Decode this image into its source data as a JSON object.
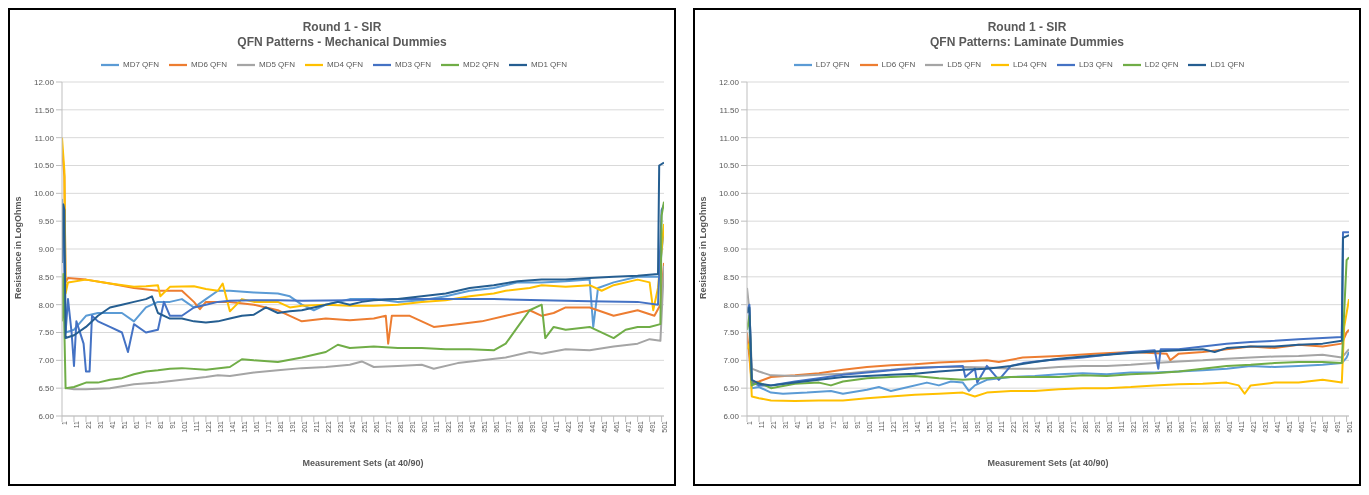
{
  "chart_data": [
    {
      "type": "line",
      "title": "Round 1 - SIR",
      "subtitle": "QFN Patterns - Mechanical Dummies",
      "xlabel": "Measurement Sets (at 40/90)",
      "ylabel": "Resistance in LogOhms",
      "xlim": [
        1,
        503
      ],
      "xticks": [
        1,
        11,
        21,
        31,
        41,
        51,
        61,
        71,
        81,
        91,
        101,
        111,
        121,
        131,
        141,
        151,
        161,
        171,
        181,
        191,
        201,
        211,
        221,
        231,
        241,
        251,
        261,
        271,
        281,
        291,
        301,
        311,
        321,
        331,
        341,
        351,
        361,
        371,
        381,
        391,
        401,
        411,
        421,
        431,
        441,
        451,
        461,
        471,
        481,
        491,
        501
      ],
      "ylim": [
        6,
        12
      ],
      "yticks": [
        {
          "value": 6,
          "label": "6.00"
        },
        {
          "value": 6.5,
          "label": "6.50"
        },
        {
          "value": 7,
          "label": "7.00"
        },
        {
          "value": 7.5,
          "label": "7.50"
        },
        {
          "value": 8,
          "label": "8.00"
        },
        {
          "value": 8.5,
          "label": "8.50"
        },
        {
          "value": 9,
          "label": "9.00"
        },
        {
          "value": 9.5,
          "label": "9.50"
        },
        {
          "value": 10,
          "label": "10.00"
        },
        {
          "value": 10.5,
          "label": "10.50"
        },
        {
          "value": 11,
          "label": "11.00"
        },
        {
          "value": 11.5,
          "label": "11.50"
        },
        {
          "value": 12,
          "label": "12.00"
        }
      ],
      "grid": "y",
      "legend": "top",
      "marker": "none",
      "line_style": "solid",
      "series": [
        {
          "name": "MD7 QFN",
          "color": "#5b9bd5",
          "x": [
            1,
            3,
            4,
            11,
            21,
            31,
            41,
            51,
            61,
            71,
            81,
            91,
            101,
            111,
            121,
            131,
            141,
            161,
            181,
            191,
            201,
            211,
            221,
            241,
            261,
            281,
            301,
            321,
            341,
            361,
            381,
            401,
            421,
            441,
            444,
            448,
            461,
            481,
            491,
            499,
            503
          ],
          "values": [
            9.9,
            9.0,
            7.5,
            7.55,
            7.8,
            7.85,
            7.85,
            7.85,
            7.7,
            7.95,
            8.05,
            8.05,
            8.1,
            7.95,
            8.1,
            8.25,
            8.25,
            8.22,
            8.2,
            8.15,
            8.0,
            7.9,
            8.0,
            8.1,
            8.1,
            8.05,
            8.08,
            8.15,
            8.25,
            8.3,
            8.4,
            8.4,
            8.42,
            8.45,
            7.6,
            8.3,
            8.4,
            8.5,
            8.5,
            8.5,
            9.4
          ]
        },
        {
          "name": "MD6 QFN",
          "color": "#ed7d31",
          "x": [
            1,
            3,
            4,
            6,
            21,
            41,
            61,
            81,
            101,
            111,
            116,
            121,
            141,
            161,
            181,
            191,
            201,
            221,
            241,
            261,
            271,
            273,
            276,
            291,
            301,
            311,
            331,
            351,
            371,
            391,
            401,
            411,
            421,
            441,
            461,
            481,
            495,
            500,
            503
          ],
          "values": [
            10.8,
            10.3,
            8.4,
            8.48,
            8.45,
            8.38,
            8.3,
            8.25,
            8.25,
            8.05,
            7.92,
            8.05,
            8.05,
            8.0,
            7.9,
            7.8,
            7.7,
            7.75,
            7.72,
            7.75,
            7.8,
            7.3,
            7.8,
            7.8,
            7.7,
            7.6,
            7.65,
            7.7,
            7.8,
            7.9,
            7.8,
            7.85,
            7.95,
            7.95,
            7.8,
            7.9,
            7.8,
            8.0,
            8.75
          ]
        },
        {
          "name": "MD5 QFN",
          "color": "#a5a5a5",
          "x": [
            5,
            11,
            21,
            41,
            61,
            81,
            101,
            121,
            131,
            141,
            161,
            181,
            201,
            221,
            241,
            251,
            261,
            281,
            301,
            311,
            331,
            351,
            371,
            391,
            401,
            421,
            441,
            461,
            481,
            491,
            500,
            503
          ],
          "values": [
            6.5,
            6.48,
            6.48,
            6.5,
            6.57,
            6.6,
            6.65,
            6.7,
            6.73,
            6.72,
            6.78,
            6.82,
            6.86,
            6.88,
            6.92,
            6.98,
            6.88,
            6.9,
            6.92,
            6.85,
            6.95,
            7.0,
            7.05,
            7.15,
            7.12,
            7.2,
            7.18,
            7.25,
            7.3,
            7.38,
            7.35,
            8.7
          ]
        },
        {
          "name": "MD4 QFN",
          "color": "#ffc000",
          "x": [
            1,
            3,
            4,
            6,
            21,
            41,
            61,
            71,
            81,
            83,
            91,
            111,
            121,
            131,
            135,
            141,
            151,
            161,
            171,
            181,
            191,
            201,
            221,
            241,
            261,
            281,
            301,
            321,
            341,
            361,
            371,
            391,
            401,
            421,
            441,
            451,
            461,
            481,
            491,
            494,
            498,
            503
          ],
          "values": [
            11.0,
            10.4,
            8.2,
            8.4,
            8.45,
            8.38,
            8.32,
            8.33,
            8.35,
            8.15,
            8.32,
            8.33,
            8.28,
            8.25,
            8.38,
            7.88,
            8.1,
            8.05,
            8.05,
            8.05,
            7.95,
            7.98,
            8.0,
            7.98,
            7.98,
            8.0,
            8.05,
            8.08,
            8.15,
            8.2,
            8.25,
            8.3,
            8.35,
            8.32,
            8.35,
            8.25,
            8.35,
            8.45,
            8.4,
            7.9,
            8.3,
            9.45
          ]
        },
        {
          "name": "MD3 QFN",
          "color": "#4472c4",
          "x": [
            1,
            2,
            4,
            6,
            9,
            11,
            13,
            19,
            21,
            24,
            26,
            31,
            41,
            51,
            56,
            61,
            71,
            81,
            86,
            91,
            101,
            111,
            121,
            131,
            141,
            161,
            181,
            201,
            241,
            281,
            321,
            361,
            401,
            441,
            481,
            498,
            501,
            503
          ],
          "values": [
            9.0,
            9.8,
            7.5,
            8.1,
            7.5,
            6.9,
            7.7,
            7.3,
            6.8,
            6.8,
            7.8,
            7.7,
            7.6,
            7.5,
            7.15,
            7.65,
            7.5,
            7.55,
            8.05,
            7.8,
            7.8,
            7.95,
            8.0,
            8.05,
            8.07,
            8.08,
            8.08,
            8.07,
            8.08,
            8.1,
            8.1,
            8.1,
            8.08,
            8.06,
            8.05,
            8.0,
            9.7,
            9.8
          ]
        },
        {
          "name": "MD2 QFN",
          "color": "#70ad47",
          "x": [
            1,
            2,
            4,
            11,
            21,
            31,
            41,
            51,
            61,
            71,
            81,
            91,
            101,
            121,
            141,
            151,
            161,
            181,
            201,
            221,
            231,
            241,
            261,
            281,
            301,
            321,
            341,
            361,
            371,
            381,
            391,
            401,
            404,
            411,
            421,
            441,
            461,
            471,
            481,
            491,
            500,
            501,
            503
          ],
          "values": [
            7.7,
            8.55,
            6.5,
            6.52,
            6.6,
            6.6,
            6.65,
            6.68,
            6.75,
            6.8,
            6.82,
            6.85,
            6.86,
            6.83,
            6.88,
            7.02,
            7.0,
            6.97,
            7.05,
            7.15,
            7.28,
            7.22,
            7.25,
            7.22,
            7.22,
            7.2,
            7.2,
            7.18,
            7.3,
            7.6,
            7.9,
            8.0,
            7.4,
            7.6,
            7.55,
            7.6,
            7.4,
            7.55,
            7.6,
            7.6,
            7.65,
            9.6,
            9.85
          ]
        },
        {
          "name": "MD1 QFN",
          "color": "#255e91",
          "x": [
            1,
            2,
            3,
            4,
            11,
            21,
            31,
            41,
            51,
            61,
            71,
            76,
            81,
            91,
            101,
            111,
            121,
            131,
            141,
            151,
            161,
            171,
            181,
            191,
            201,
            211,
            221,
            231,
            241,
            251,
            261,
            281,
            301,
            321,
            341,
            361,
            381,
            401,
            421,
            441,
            461,
            481,
            498,
            499,
            503
          ],
          "values": [
            8.75,
            9.8,
            9.7,
            7.4,
            7.45,
            7.6,
            7.8,
            7.95,
            8.0,
            8.05,
            8.1,
            8.15,
            7.85,
            7.75,
            7.75,
            7.7,
            7.68,
            7.7,
            7.75,
            7.8,
            7.82,
            7.95,
            7.85,
            7.88,
            7.9,
            7.95,
            8.0,
            8.05,
            8.0,
            8.05,
            8.08,
            8.1,
            8.15,
            8.2,
            8.3,
            8.35,
            8.42,
            8.45,
            8.45,
            8.48,
            8.5,
            8.52,
            8.55,
            10.5,
            10.55
          ]
        }
      ]
    },
    {
      "type": "line",
      "title": "Round 1 - SIR",
      "subtitle": "QFN Patterns: Laminate Dummies",
      "xlabel": "Measurement Sets (at 40/90)",
      "ylabel": "Resistance in LogOhms",
      "xlim": [
        1,
        503
      ],
      "xticks": [
        1,
        11,
        21,
        31,
        41,
        51,
        61,
        71,
        81,
        91,
        101,
        111,
        121,
        131,
        141,
        151,
        161,
        171,
        181,
        191,
        201,
        211,
        221,
        231,
        241,
        251,
        261,
        271,
        281,
        291,
        301,
        311,
        321,
        331,
        341,
        351,
        361,
        371,
        381,
        391,
        401,
        411,
        421,
        431,
        441,
        451,
        461,
        471,
        481,
        491,
        501
      ],
      "ylim": [
        6,
        12
      ],
      "yticks": [
        {
          "value": 6,
          "label": "6.00"
        },
        {
          "value": 6.5,
          "label": "6.50"
        },
        {
          "value": 7,
          "label": "7.00"
        },
        {
          "value": 7.5,
          "label": "7.50"
        },
        {
          "value": 8,
          "label": "8.00"
        },
        {
          "value": 8.5,
          "label": "8.50"
        },
        {
          "value": 9,
          "label": "9.00"
        },
        {
          "value": 9.5,
          "label": "9.50"
        },
        {
          "value": 10,
          "label": "10.00"
        },
        {
          "value": 10.5,
          "label": "10.50"
        },
        {
          "value": 11,
          "label": "11.00"
        },
        {
          "value": 11.5,
          "label": "11.50"
        },
        {
          "value": 12,
          "label": "12.00"
        }
      ],
      "grid": "y",
      "legend": "top",
      "marker": "none",
      "line_style": "solid",
      "series": [
        {
          "name": "LD7 QFN",
          "color": "#5b9bd5",
          "x": [
            1,
            3,
            5,
            11,
            21,
            31,
            51,
            71,
            81,
            101,
            111,
            121,
            131,
            151,
            161,
            171,
            181,
            186,
            191,
            201,
            221,
            241,
            261,
            281,
            301,
            321,
            341,
            361,
            381,
            401,
            421,
            441,
            461,
            481,
            497,
            501,
            503
          ],
          "values": [
            7.6,
            7.7,
            6.5,
            6.52,
            6.42,
            6.4,
            6.42,
            6.45,
            6.4,
            6.47,
            6.52,
            6.45,
            6.5,
            6.6,
            6.55,
            6.62,
            6.6,
            6.45,
            6.55,
            6.65,
            6.7,
            6.72,
            6.75,
            6.77,
            6.75,
            6.78,
            6.78,
            6.8,
            6.82,
            6.85,
            6.9,
            6.88,
            6.9,
            6.92,
            6.95,
            7.05,
            7.15
          ]
        },
        {
          "name": "LD6 QFN",
          "color": "#ed7d31",
          "x": [
            1,
            5,
            11,
            21,
            41,
            61,
            81,
            101,
            121,
            141,
            161,
            181,
            201,
            211,
            231,
            261,
            291,
            321,
            351,
            354,
            361,
            381,
            401,
            421,
            441,
            461,
            481,
            497,
            501,
            503
          ],
          "values": [
            7.5,
            6.6,
            6.62,
            6.7,
            6.73,
            6.77,
            6.83,
            6.88,
            6.91,
            6.93,
            6.96,
            6.98,
            7.0,
            6.97,
            7.05,
            7.08,
            7.12,
            7.15,
            7.12,
            7.0,
            7.12,
            7.15,
            7.2,
            7.25,
            7.22,
            7.28,
            7.25,
            7.3,
            7.5,
            7.55
          ]
        },
        {
          "name": "LD5 QFN",
          "color": "#a5a5a5",
          "x": [
            1,
            3,
            5,
            11,
            21,
            41,
            61,
            81,
            101,
            121,
            141,
            161,
            181,
            201,
            221,
            241,
            261,
            281,
            301,
            321,
            341,
            361,
            381,
            401,
            421,
            441,
            461,
            481,
            497,
            503
          ],
          "values": [
            8.3,
            7.9,
            6.85,
            6.8,
            6.73,
            6.72,
            6.74,
            6.76,
            6.8,
            6.83,
            6.87,
            6.88,
            6.88,
            6.87,
            6.85,
            6.85,
            6.88,
            6.9,
            6.9,
            6.92,
            6.95,
            6.98,
            7.0,
            7.03,
            7.05,
            7.07,
            7.08,
            7.1,
            7.05,
            7.2
          ]
        },
        {
          "name": "LD4 QFN",
          "color": "#ffc000",
          "x": [
            1,
            3,
            5,
            11,
            21,
            41,
            61,
            81,
            101,
            121,
            141,
            161,
            181,
            191,
            201,
            221,
            241,
            261,
            281,
            301,
            321,
            341,
            361,
            381,
            401,
            411,
            416,
            421,
            441,
            461,
            481,
            497,
            499,
            503
          ],
          "values": [
            7.2,
            7.3,
            6.35,
            6.32,
            6.28,
            6.27,
            6.28,
            6.28,
            6.32,
            6.35,
            6.38,
            6.4,
            6.42,
            6.35,
            6.42,
            6.45,
            6.45,
            6.48,
            6.5,
            6.5,
            6.52,
            6.55,
            6.57,
            6.58,
            6.6,
            6.55,
            6.4,
            6.55,
            6.6,
            6.6,
            6.65,
            6.6,
            7.6,
            8.1
          ]
        },
        {
          "name": "LD3 QFN",
          "color": "#4472c4",
          "x": [
            1,
            3,
            5,
            11,
            21,
            41,
            61,
            81,
            101,
            121,
            141,
            161,
            181,
            183,
            191,
            193,
            201,
            211,
            221,
            231,
            251,
            281,
            301,
            321,
            341,
            344,
            346,
            361,
            381,
            401,
            421,
            441,
            461,
            481,
            497,
            498,
            503
          ],
          "values": [
            7.9,
            8.0,
            6.6,
            6.55,
            6.55,
            6.62,
            6.68,
            6.74,
            6.78,
            6.82,
            6.86,
            6.88,
            6.9,
            6.7,
            6.85,
            6.6,
            6.9,
            6.65,
            6.9,
            6.95,
            7.0,
            7.05,
            7.1,
            7.15,
            7.18,
            6.85,
            7.2,
            7.2,
            7.25,
            7.3,
            7.33,
            7.35,
            7.38,
            7.4,
            7.42,
            9.3,
            9.3
          ]
        },
        {
          "name": "LD2 QFN",
          "color": "#70ad47",
          "x": [
            1,
            3,
            5,
            11,
            21,
            41,
            61,
            71,
            81,
            101,
            121,
            141,
            161,
            181,
            201,
            221,
            261,
            281,
            301,
            321,
            341,
            361,
            381,
            401,
            421,
            441,
            461,
            481,
            497,
            501,
            503
          ],
          "values": [
            7.55,
            7.8,
            6.55,
            6.6,
            6.5,
            6.58,
            6.6,
            6.55,
            6.62,
            6.68,
            6.7,
            6.72,
            6.68,
            6.65,
            6.68,
            6.7,
            6.7,
            6.73,
            6.72,
            6.75,
            6.77,
            6.8,
            6.85,
            6.9,
            6.92,
            6.95,
            6.97,
            6.97,
            6.95,
            8.8,
            8.85
          ]
        },
        {
          "name": "LD1 QFN",
          "color": "#255e91",
          "x": [
            1,
            3,
            5,
            11,
            21,
            41,
            61,
            81,
            101,
            121,
            141,
            161,
            181,
            201,
            221,
            241,
            261,
            281,
            301,
            321,
            341,
            361,
            381,
            391,
            401,
            421,
            441,
            461,
            481,
            497,
            498,
            503
          ],
          "values": [
            7.85,
            7.95,
            6.65,
            6.58,
            6.55,
            6.6,
            6.65,
            6.7,
            6.72,
            6.74,
            6.76,
            6.8,
            6.83,
            6.85,
            6.9,
            6.97,
            7.03,
            7.07,
            7.1,
            7.13,
            7.16,
            7.18,
            7.2,
            7.15,
            7.22,
            7.25,
            7.25,
            7.28,
            7.3,
            7.35,
            9.2,
            9.25
          ]
        }
      ]
    }
  ]
}
